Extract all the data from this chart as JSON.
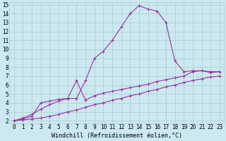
{
  "bg_color": "#cce8f0",
  "grid_color": "#aacccc",
  "line_color": "#993399",
  "marker": "+",
  "markersize": 3,
  "linewidth": 0.8,
  "markeredgewidth": 0.8,
  "xlabel": "Windchill (Refroidissement éolien,°C)",
  "xlabel_fontsize": 6,
  "tick_fontsize": 5.5,
  "xlim": [
    -0.5,
    23.5
  ],
  "ylim": [
    1.7,
    15.3
  ],
  "yticks": [
    2,
    3,
    4,
    5,
    6,
    7,
    8,
    9,
    10,
    11,
    12,
    13,
    14,
    15
  ],
  "xticks": [
    0,
    1,
    2,
    3,
    4,
    5,
    6,
    7,
    8,
    9,
    10,
    11,
    12,
    13,
    14,
    15,
    16,
    17,
    18,
    19,
    20,
    21,
    22,
    23
  ],
  "series1_x": [
    0,
    1,
    2,
    3,
    4,
    5,
    6,
    7,
    8,
    9,
    10,
    11,
    12,
    13,
    14,
    15,
    16,
    17,
    18,
    19,
    20,
    21,
    22,
    23
  ],
  "series1_y": [
    2.0,
    2.2,
    2.5,
    4.0,
    4.2,
    4.4,
    4.5,
    4.5,
    6.5,
    9.0,
    9.8,
    11.0,
    12.5,
    14.0,
    14.9,
    14.5,
    14.3,
    13.0,
    8.7,
    7.5,
    7.6,
    7.6,
    7.5,
    7.5
  ],
  "series2_x": [
    0,
    1,
    2,
    3,
    4,
    5,
    6,
    7,
    8,
    9,
    10,
    11,
    12,
    13,
    14,
    15,
    16,
    17,
    18,
    19,
    20,
    21,
    22,
    23
  ],
  "series2_y": [
    2.0,
    2.3,
    2.7,
    3.3,
    3.8,
    4.2,
    4.5,
    6.5,
    4.3,
    4.8,
    5.1,
    5.3,
    5.5,
    5.7,
    5.9,
    6.1,
    6.4,
    6.6,
    6.8,
    7.0,
    7.5,
    7.6,
    7.4,
    7.5
  ],
  "series3_x": [
    0,
    1,
    2,
    3,
    4,
    5,
    6,
    7,
    8,
    9,
    10,
    11,
    12,
    13,
    14,
    15,
    16,
    17,
    18,
    19,
    20,
    21,
    22,
    23
  ],
  "series3_y": [
    2.0,
    2.1,
    2.2,
    2.3,
    2.5,
    2.7,
    3.0,
    3.2,
    3.5,
    3.8,
    4.0,
    4.3,
    4.5,
    4.8,
    5.0,
    5.3,
    5.5,
    5.8,
    6.0,
    6.3,
    6.5,
    6.7,
    6.9,
    7.0
  ]
}
